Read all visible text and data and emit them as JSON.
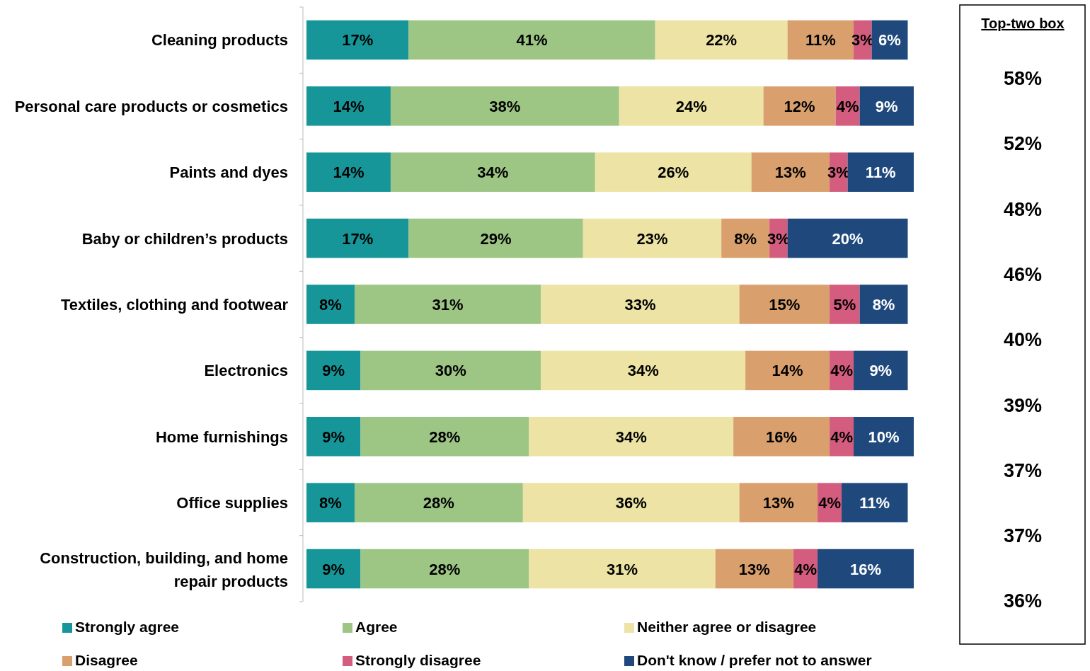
{
  "chart_data": [
    {
      "type": "bar",
      "orientation": "horizontal",
      "stacked": true,
      "xlim": [
        0,
        101
      ],
      "tick_labels": "y",
      "legend": "bottom",
      "categories": [
        "Cleaning products",
        "Personal care products or cosmetics",
        "Paints and dyes",
        "Baby or children’s products",
        "Textiles, clothing and footwear",
        "Electronics",
        "Home furnishings",
        "Office supplies",
        "Construction, building, and home repair products"
      ],
      "series": [
        {
          "name": "Strongly agree",
          "color": "#17969a",
          "values": [
            17,
            14,
            14,
            17,
            8,
            9,
            9,
            8,
            9
          ],
          "value_labels": [
            "17%",
            "14%",
            "14%",
            "17%",
            "8%",
            "9%",
            "9%",
            "8%",
            "9%"
          ]
        },
        {
          "name": "Agree",
          "color": "#9dc584",
          "values": [
            41,
            38,
            34,
            29,
            31,
            30,
            28,
            28,
            28
          ],
          "value_labels": [
            "41%",
            "38%",
            "34%",
            "29%",
            "31%",
            "30%",
            "28%",
            "28%",
            "28%"
          ]
        },
        {
          "name": "Neither agree or disagree",
          "color": "#ece3a4",
          "values": [
            22,
            24,
            26,
            23,
            33,
            34,
            34,
            36,
            31
          ],
          "value_labels": [
            "22%",
            "24%",
            "26%",
            "23%",
            "33%",
            "34%",
            "34%",
            "36%",
            "31%"
          ]
        },
        {
          "name": "Disagree",
          "color": "#d9a06e",
          "values": [
            11,
            12,
            13,
            8,
            15,
            14,
            16,
            13,
            13
          ],
          "value_labels": [
            "11%",
            "12%",
            "13%",
            "8%",
            "15%",
            "14%",
            "16%",
            "13%",
            "13%"
          ]
        },
        {
          "name": "Strongly disagree",
          "color": "#d45c7f",
          "values": [
            3,
            4,
            3,
            3,
            5,
            4,
            4,
            4,
            4
          ],
          "value_labels": [
            "3%",
            "4%",
            "3%",
            "3%",
            "5%",
            "4%",
            "4%",
            "4%",
            "4%"
          ]
        },
        {
          "name": "Don't know / prefer not to answer",
          "color": "#1f497d",
          "values": [
            6,
            9,
            11,
            20,
            8,
            9,
            10,
            11,
            16
          ],
          "value_labels": [
            "6%",
            "9%",
            "11%",
            "20%",
            "8%",
            "9%",
            "10%",
            "11%",
            "16%"
          ]
        }
      ]
    },
    {
      "type": "other",
      "title": "Top-two box",
      "annotations": [
        "58%",
        "52%",
        "48%",
        "46%",
        "40%",
        "39%",
        "37%",
        "37%",
        "36%"
      ]
    }
  ]
}
